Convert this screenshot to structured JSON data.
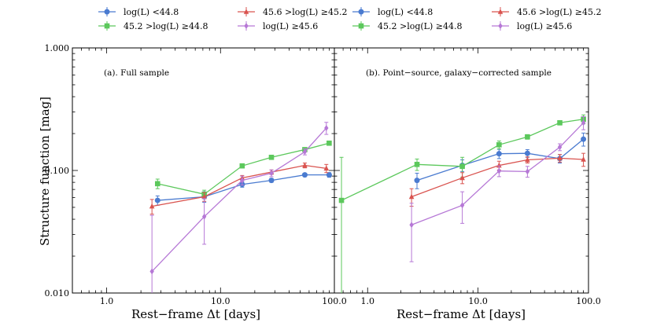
{
  "colors": {
    "blue": "#4a7bd0",
    "green": "#5cc85c",
    "red": "#d9534f",
    "purple": "#b678d6"
  },
  "legend": {
    "items": [
      {
        "label": "log(L) <44.8",
        "color": "#4a7bd0",
        "marker": "circle"
      },
      {
        "label": "45.6 >log(L) ≥45.2",
        "color": "#d9534f",
        "marker": "triangle"
      },
      {
        "label": "45.2 >log(L) ≥44.8",
        "color": "#5cc85c",
        "marker": "square"
      },
      {
        "label": "log(L) ≥45.6",
        "color": "#b678d6",
        "marker": "diamond"
      }
    ]
  },
  "chart_data": [
    {
      "type": "line",
      "panel_label": "(a). Full sample",
      "xlabel": "Rest−frame Δt [days]",
      "ylabel": "Structure function [mag]",
      "xscale": "log",
      "yscale": "log",
      "xlim": [
        0.5,
        100
      ],
      "ylim": [
        0.01,
        1.0
      ],
      "x_ticks": [
        "1.0",
        "10.0",
        "100.0"
      ],
      "y_ticks": [
        "0.010",
        "0.100",
        "1.000"
      ],
      "series": [
        {
          "name": "log(L) <44.8",
          "color": "#4a7bd0",
          "marker": "circle",
          "x": [
            2.8,
            7.2,
            15.5,
            28,
            55,
            90
          ],
          "y": [
            0.057,
            0.061,
            0.077,
            0.083,
            0.092,
            0.092
          ],
          "yerr": [
            0.005,
            0.006,
            0.004,
            0.003,
            0.003,
            0.004
          ]
        },
        {
          "name": "45.2 >log(L) ≥44.8",
          "color": "#5cc85c",
          "marker": "square",
          "x": [
            2.8,
            7.2,
            15.5,
            28,
            55,
            90
          ],
          "y": [
            0.078,
            0.064,
            0.109,
            0.128,
            0.148,
            0.167
          ],
          "yerr": [
            0.007,
            0.005,
            0.004,
            0.004,
            0.005,
            0.006
          ]
        },
        {
          "name": "45.6 >log(L) ≥45.2",
          "color": "#d9534f",
          "marker": "triangle",
          "x": [
            2.5,
            7.2,
            15.5,
            28,
            55,
            85
          ],
          "y": [
            0.051,
            0.061,
            0.087,
            0.097,
            0.11,
            0.104
          ],
          "yerr": [
            0.007,
            0.005,
            0.004,
            0.004,
            0.005,
            0.008
          ]
        },
        {
          "name": "log(L) ≥45.6",
          "color": "#b678d6",
          "marker": "diamond",
          "x": [
            2.5,
            7.2,
            15.5,
            28,
            55,
            85
          ],
          "y": [
            0.015,
            0.042,
            0.083,
            0.095,
            0.142,
            0.222
          ],
          "yerr": [
            0.028,
            0.017,
            0.007,
            0.006,
            0.008,
            0.025
          ]
        }
      ]
    },
    {
      "type": "line",
      "panel_label": "(b). Point−source, galaxy−corrected sample",
      "xlabel": "Rest−frame Δt [days]",
      "ylabel": "Structure function [mag]",
      "xscale": "log",
      "yscale": "log",
      "xlim": [
        0.5,
        100
      ],
      "ylim": [
        0.01,
        1.0
      ],
      "x_ticks": [
        "1.0",
        "10.0",
        "100.0"
      ],
      "series": [
        {
          "name": "log(L) <44.8",
          "color": "#4a7bd0",
          "marker": "circle",
          "x": [
            2.8,
            7.2,
            15.5,
            28,
            55,
            90
          ],
          "y": [
            0.083,
            0.11,
            0.137,
            0.138,
            0.125,
            0.18
          ],
          "yerr": [
            0.012,
            0.012,
            0.012,
            0.01,
            0.01,
            0.022
          ]
        },
        {
          "name": "45.2 >log(L) ≥44.8",
          "color": "#5cc85c",
          "marker": "square",
          "x": [
            0.58,
            2.8,
            7.2,
            15.5,
            28,
            55,
            90
          ],
          "y": [
            0.057,
            0.112,
            0.108,
            0.162,
            0.188,
            0.245,
            0.262
          ],
          "yerr": [
            0.071,
            0.012,
            0.02,
            0.012,
            0.008,
            0.01,
            0.022
          ]
        },
        {
          "name": "45.6 >log(L) ≥45.2",
          "color": "#d9534f",
          "marker": "triangle",
          "x": [
            2.5,
            7.2,
            15.5,
            28,
            55,
            90
          ],
          "y": [
            0.061,
            0.087,
            0.11,
            0.122,
            0.126,
            0.123
          ],
          "yerr": [
            0.01,
            0.009,
            0.009,
            0.007,
            0.009,
            0.015
          ]
        },
        {
          "name": "log(L) ≥45.6",
          "color": "#b678d6",
          "marker": "diamond",
          "x": [
            2.5,
            7.2,
            15.5,
            28,
            55,
            90
          ],
          "y": [
            0.036,
            0.052,
            0.099,
            0.098,
            0.155,
            0.245
          ],
          "yerr": [
            0.018,
            0.015,
            0.01,
            0.01,
            0.01,
            0.03
          ]
        }
      ]
    }
  ]
}
